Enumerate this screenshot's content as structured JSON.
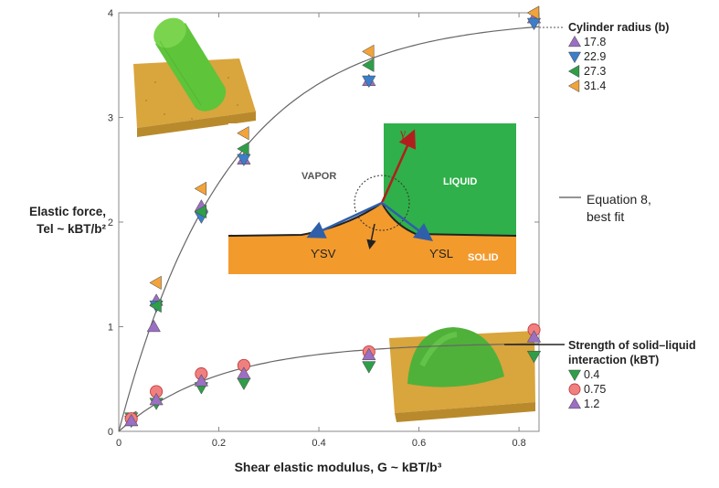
{
  "chart_data": {
    "type": "scatter",
    "xlabel": "Shear elastic modulus, G ~ kBT/b³",
    "ylabel_line1": "Elastic force,",
    "ylabel_line2": "Tel ~ kBT/b²",
    "xlim": [
      0,
      0.84
    ],
    "ylim": [
      0,
      4
    ],
    "x_ticks": [
      "0",
      "0.2",
      "0.4",
      "0.6",
      "0.8"
    ],
    "y_ticks": [
      "0",
      "1",
      "2",
      "3",
      "4"
    ],
    "fit_label_line1": "Equation 8,",
    "fit_label_line2": "best fit",
    "legend_cylinder": {
      "title": "Cylinder radius (b)",
      "entries": [
        {
          "label": "17.8",
          "marker": "triangle-up",
          "color": "#9b6fc2"
        },
        {
          "label": "22.9",
          "marker": "triangle-down",
          "color": "#3c7ec9"
        },
        {
          "label": "27.3",
          "marker": "triangle-left",
          "color": "#2f9e48"
        },
        {
          "label": "31.4",
          "marker": "triangle-left",
          "color": "#f2a33a"
        }
      ]
    },
    "legend_droplet": {
      "title_line1": "Strength of solid–liquid",
      "title_line2": "interaction (kBT)",
      "entries": [
        {
          "label": "0.4",
          "marker": "triangle-down",
          "color": "#2f9e48"
        },
        {
          "label": "0.75",
          "marker": "circle",
          "color": "#f08080"
        },
        {
          "label": "1.2",
          "marker": "triangle-up",
          "color": "#9b6fc2"
        }
      ]
    },
    "series": [
      {
        "group": "cylinder",
        "radius": "17.8",
        "marker": "triangle-up",
        "color": "#9b6fc2",
        "x": [
          0.025,
          0.07,
          0.075,
          0.165,
          0.25,
          0.5,
          0.83
        ],
        "y": [
          0.1,
          1.0,
          1.25,
          2.15,
          2.6,
          3.35,
          3.95
        ]
      },
      {
        "group": "cylinder",
        "radius": "22.9",
        "marker": "triangle-down",
        "color": "#3c7ec9",
        "x": [
          0.025,
          0.075,
          0.165,
          0.25,
          0.5,
          0.83
        ],
        "y": [
          0.1,
          1.2,
          2.05,
          2.6,
          3.35,
          3.9
        ]
      },
      {
        "group": "cylinder",
        "radius": "27.3",
        "marker": "triangle-left",
        "color": "#2f9e48",
        "x": [
          0.025,
          0.075,
          0.165,
          0.25,
          0.5,
          0.83
        ],
        "y": [
          0.12,
          1.2,
          2.1,
          2.7,
          3.5,
          4.0
        ]
      },
      {
        "group": "cylinder",
        "radius": "31.4",
        "marker": "triangle-left",
        "color": "#f2a33a",
        "x": [
          0.025,
          0.075,
          0.165,
          0.25,
          0.5,
          0.83
        ],
        "y": [
          0.13,
          1.42,
          2.32,
          2.85,
          3.63,
          4.0
        ]
      },
      {
        "group": "droplet",
        "strength": "0.4",
        "marker": "triangle-down",
        "color": "#2f9e48",
        "x": [
          0.025,
          0.075,
          0.165,
          0.25,
          0.5,
          0.83
        ],
        "y": [
          0.13,
          0.27,
          0.42,
          0.46,
          0.62,
          0.72
        ]
      },
      {
        "group": "droplet",
        "strength": "0.75",
        "marker": "circle",
        "color": "#f08080",
        "x": [
          0.025,
          0.075,
          0.165,
          0.25,
          0.5,
          0.83
        ],
        "y": [
          0.12,
          0.38,
          0.55,
          0.63,
          0.76,
          0.97
        ]
      },
      {
        "group": "droplet",
        "strength": "1.2",
        "marker": "triangle-up",
        "color": "#9b6fc2",
        "x": [
          0.025,
          0.075,
          0.165,
          0.25,
          0.5,
          0.83
        ],
        "y": [
          0.1,
          0.3,
          0.48,
          0.55,
          0.73,
          0.9
        ]
      }
    ],
    "fit_curves": [
      {
        "asymptote": 3.95,
        "rate": 4.6
      },
      {
        "asymptote": 0.85,
        "rate": 5.0
      }
    ],
    "inset": {
      "vapor": "VAPOR",
      "liquid": "LIQUID",
      "solid": "SOLID",
      "gamma": "γ",
      "gamma_sv": "ϒSV",
      "gamma_sl": "ϒSL",
      "colors": {
        "liquid": "#2fb04a",
        "solid": "#f39a2c",
        "vapor": "#ffffff",
        "arrow_red": "#b21e1e",
        "arrow_blue": "#2f5fa8"
      }
    },
    "grid": false
  }
}
